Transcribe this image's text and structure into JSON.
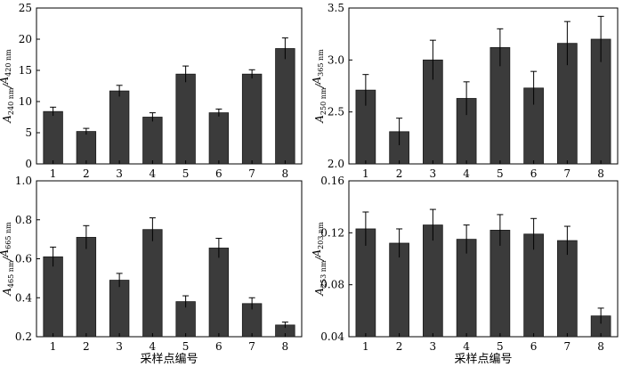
{
  "chart_data": [
    {
      "type": "bar",
      "categories": [
        "1",
        "2",
        "3",
        "4",
        "5",
        "6",
        "7",
        "8"
      ],
      "values": [
        8.4,
        5.2,
        11.7,
        7.5,
        14.4,
        8.2,
        14.4,
        18.5
      ],
      "errors": [
        0.7,
        0.5,
        0.9,
        0.7,
        1.3,
        0.6,
        0.7,
        1.7
      ],
      "ylim": [
        0,
        25
      ],
      "yticks": [
        "0",
        "5",
        "10",
        "15",
        "20",
        "25"
      ],
      "ylabel_main1": "A",
      "ylabel_sub1": "240 nm",
      "ylabel_sep": "/",
      "ylabel_main2": "A",
      "ylabel_sub2": "420 nm",
      "xlabel": ""
    },
    {
      "type": "bar",
      "categories": [
        "1",
        "2",
        "3",
        "4",
        "5",
        "6",
        "7",
        "8"
      ],
      "values": [
        2.71,
        2.31,
        3.0,
        2.63,
        3.12,
        2.73,
        3.16,
        3.2
      ],
      "errors": [
        0.15,
        0.13,
        0.19,
        0.16,
        0.18,
        0.16,
        0.21,
        0.22
      ],
      "ylim": [
        2.0,
        3.5
      ],
      "yticks": [
        "2.0",
        "2.5",
        "3.0",
        "3.5"
      ],
      "ylabel_main1": "A",
      "ylabel_sub1": "250 nm",
      "ylabel_sep": "/",
      "ylabel_main2": "A",
      "ylabel_sub2": "365 nm",
      "xlabel": ""
    },
    {
      "type": "bar",
      "categories": [
        "1",
        "2",
        "3",
        "4",
        "5",
        "6",
        "7",
        "8"
      ],
      "values": [
        0.61,
        0.71,
        0.49,
        0.75,
        0.38,
        0.655,
        0.37,
        0.26
      ],
      "errors": [
        0.05,
        0.06,
        0.035,
        0.06,
        0.03,
        0.05,
        0.03,
        0.015
      ],
      "ylim": [
        0.2,
        1.0
      ],
      "yticks": [
        "0.2",
        "0.4",
        "0.6",
        "0.8",
        "1.0"
      ],
      "ylabel_main1": "A",
      "ylabel_sub1": "465 nm",
      "ylabel_sep": "/",
      "ylabel_main2": "A",
      "ylabel_sub2": "665 nm",
      "xlabel": "采样点编号"
    },
    {
      "type": "bar",
      "categories": [
        "1",
        "2",
        "3",
        "4",
        "5",
        "6",
        "7",
        "8"
      ],
      "values": [
        0.123,
        0.112,
        0.126,
        0.115,
        0.122,
        0.119,
        0.114,
        0.056
      ],
      "errors": [
        0.013,
        0.011,
        0.012,
        0.011,
        0.012,
        0.012,
        0.011,
        0.006
      ],
      "ylim": [
        0.04,
        0.16
      ],
      "yticks": [
        "0.04",
        "0.08",
        "0.12",
        "0.16"
      ],
      "ylabel_main1": "A",
      "ylabel_sub1": "253 nm",
      "ylabel_sep": "/",
      "ylabel_main2": "A",
      "ylabel_sub2": "203 nm",
      "xlabel": "采样点编号"
    }
  ]
}
